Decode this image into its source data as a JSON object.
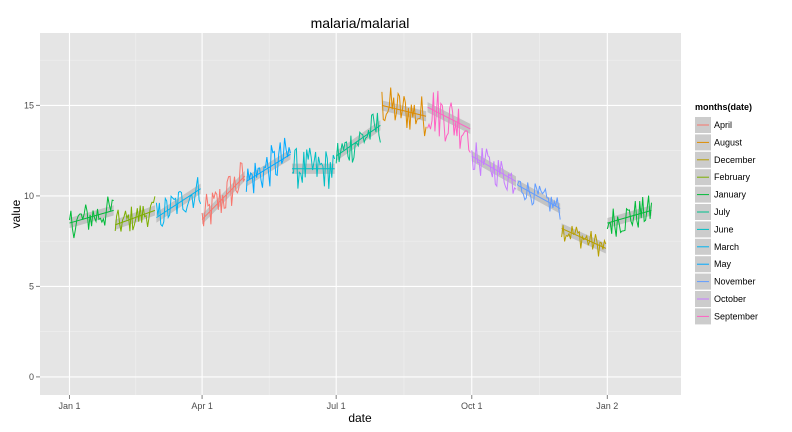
{
  "chart_data": {
    "type": "line",
    "title": "malaria/malarial",
    "xlabel": "date",
    "ylabel": "value",
    "ylim": [
      -1,
      19
    ],
    "y_ticks": [
      0,
      5,
      10,
      15
    ],
    "x_ticks": [
      {
        "label": "Jan 1",
        "day": 0
      },
      {
        "label": "Apr 1",
        "day": 90
      },
      {
        "label": "Jul 1",
        "day": 181
      },
      {
        "label": "Oct 1",
        "day": 273
      },
      {
        "label": "Jan 2",
        "day": 365
      }
    ],
    "xlim_days": [
      -20,
      415
    ],
    "grid": true,
    "legend_title": "months(date)",
    "legend_position": "right",
    "series": [
      {
        "name": "April",
        "color": "#F8766D",
        "month_starts": [
          90
        ],
        "days": 30,
        "trend": [
          8.7,
          11.1
        ],
        "noise": 0.9
      },
      {
        "name": "August",
        "color": "#DE8C00",
        "month_starts": [
          212
        ],
        "days": 31,
        "trend": [
          15.0,
          14.4
        ],
        "noise": 0.9
      },
      {
        "name": "December",
        "color": "#B79F00",
        "month_starts": [
          334
        ],
        "days": 31,
        "trend": [
          8.2,
          7.1
        ],
        "noise": 0.5
      },
      {
        "name": "February",
        "color": "#7CAE00",
        "month_starts": [
          31
        ],
        "days": 28,
        "trend": [
          8.4,
          9.2
        ],
        "noise": 0.6
      },
      {
        "name": "January",
        "color": "#00BA38",
        "month_starts": [
          0,
          365
        ],
        "days": 31,
        "trend": [
          8.5,
          9.2
        ],
        "noise": 0.7
      },
      {
        "name": "July",
        "color": "#00C08B",
        "month_starts": [
          181
        ],
        "days": 31,
        "trend": [
          12.2,
          13.9
        ],
        "noise": 0.8
      },
      {
        "name": "June",
        "color": "#00BFC4",
        "month_starts": [
          151
        ],
        "days": 30,
        "trend": [
          11.5,
          11.5
        ],
        "noise": 0.9
      },
      {
        "name": "March",
        "color": "#00B4F0",
        "month_starts": [
          59
        ],
        "days": 31,
        "trend": [
          8.8,
          10.4
        ],
        "noise": 0.7
      },
      {
        "name": "May",
        "color": "#00A9FF",
        "month_starts": [
          120
        ],
        "days": 31,
        "trend": [
          10.8,
          12.3
        ],
        "noise": 0.9
      },
      {
        "name": "November",
        "color": "#619CFF",
        "month_starts": [
          304
        ],
        "days": 30,
        "trend": [
          10.6,
          9.3
        ],
        "noise": 0.5
      },
      {
        "name": "October",
        "color": "#C77CFF",
        "month_starts": [
          273
        ],
        "days": 31,
        "trend": [
          12.2,
          10.8
        ],
        "noise": 0.7
      },
      {
        "name": "September",
        "color": "#FF61C3",
        "month_starts": [
          243
        ],
        "days": 30,
        "trend": [
          14.9,
          13.7
        ],
        "noise": 1.1
      }
    ]
  }
}
